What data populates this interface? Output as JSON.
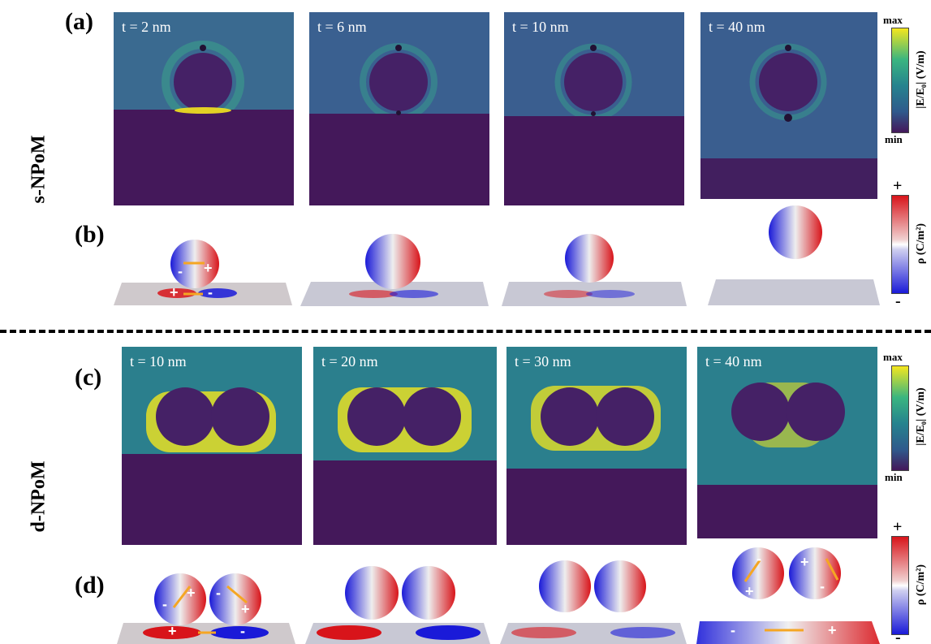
{
  "panel_labels": {
    "a": "(a)",
    "b": "(b)",
    "c": "(c)",
    "d": "(d)"
  },
  "row_labels": {
    "s": "s-NPoM",
    "d": "d-NPoM"
  },
  "s_panels": [
    "t = 2 nm",
    "t = 6 nm",
    "t = 10 nm",
    "t = 40 nm"
  ],
  "d_panels": [
    "t = 10 nm",
    "t = 20 nm",
    "t = 30 nm",
    "t = 40 nm"
  ],
  "field_colorbar": {
    "max": "max",
    "min": "min",
    "title": "|E/E₀| (V/m)"
  },
  "charge_colorbar": {
    "plus": "+",
    "minus": "-",
    "title": "ρ (C/m²)"
  },
  "charge_signs": {
    "plus": "+",
    "minus": "-"
  },
  "colors": {
    "field_dark": "#441a5a",
    "field_teal": "#2b7f8d",
    "field_yellow": "#f4e61e",
    "charge_red": "#d8141a",
    "charge_blue": "#1a1ad8",
    "arrow": "#f5a623"
  }
}
